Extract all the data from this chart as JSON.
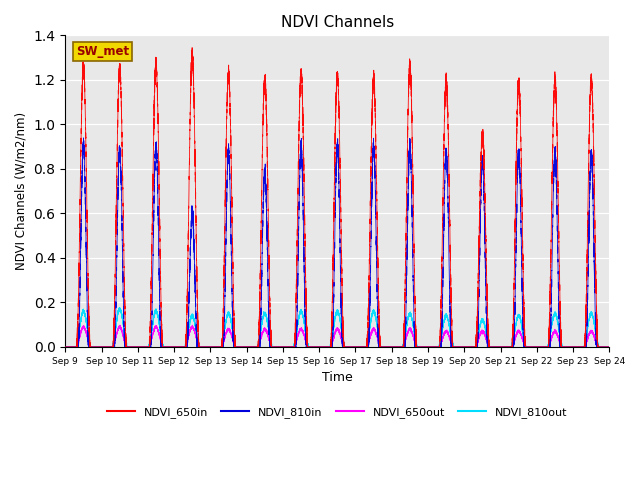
{
  "title": "NDVI Channels",
  "xlabel": "Time",
  "ylabel": "NDVI Channels (W/m2/nm)",
  "ylim": [
    0,
    1.4
  ],
  "num_days": 15,
  "station_label": "SW_met",
  "colors": {
    "NDVI_650in": "#ff0000",
    "NDVI_810in": "#0000dd",
    "NDVI_650out": "#ff00ff",
    "NDVI_810out": "#00ddff"
  },
  "peak_650in": [
    1.26,
    1.25,
    1.27,
    1.31,
    1.23,
    1.2,
    1.23,
    1.22,
    1.2,
    1.26,
    1.2,
    0.95,
    1.19,
    1.2,
    1.2
  ],
  "peak_810in": [
    0.91,
    0.89,
    0.91,
    0.6,
    0.88,
    0.79,
    0.9,
    0.9,
    0.9,
    0.91,
    0.88,
    0.83,
    0.87,
    0.87,
    0.87
  ],
  "peak_650out": [
    0.09,
    0.09,
    0.09,
    0.09,
    0.08,
    0.08,
    0.08,
    0.08,
    0.08,
    0.08,
    0.07,
    0.07,
    0.07,
    0.07,
    0.07
  ],
  "peak_810out": [
    0.16,
    0.17,
    0.16,
    0.14,
    0.15,
    0.15,
    0.16,
    0.16,
    0.16,
    0.15,
    0.14,
    0.12,
    0.14,
    0.15,
    0.15
  ],
  "background_color": "#e8e8e8",
  "legend_entries": [
    "NDVI_650in",
    "NDVI_810in",
    "NDVI_650out",
    "NDVI_810out"
  ],
  "xtick_labels": [
    "Sep 9",
    "Sep 10",
    "Sep 11",
    "Sep 12",
    "Sep 13",
    "Sep 14",
    "Sep 15",
    "Sep 16",
    "Sep 17",
    "Sep 18",
    "Sep 19",
    "Sep 20",
    "Sep 21",
    "Sep 22",
    "Sep 23",
    "Sep 24"
  ],
  "figsize": [
    6.4,
    4.8
  ],
  "dpi": 100
}
